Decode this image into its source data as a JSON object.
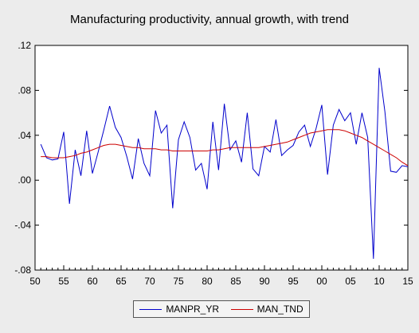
{
  "chart_data": {
    "type": "line",
    "title": "Manufacturing productivity, annual growth, with trend",
    "xlabel": "",
    "ylabel": "",
    "x": [
      1951,
      1952,
      1953,
      1954,
      1955,
      1956,
      1957,
      1958,
      1959,
      1960,
      1961,
      1962,
      1963,
      1964,
      1965,
      1966,
      1967,
      1968,
      1969,
      1970,
      1971,
      1972,
      1973,
      1974,
      1975,
      1976,
      1977,
      1978,
      1979,
      1980,
      1981,
      1982,
      1983,
      1984,
      1985,
      1986,
      1987,
      1988,
      1989,
      1990,
      1991,
      1992,
      1993,
      1994,
      1995,
      1996,
      1997,
      1998,
      1999,
      2000,
      2001,
      2002,
      2003,
      2004,
      2005,
      2006,
      2007,
      2008,
      2009,
      2010,
      2011,
      2012,
      2013,
      2014,
      2015
    ],
    "xlim": [
      1950,
      2015
    ],
    "ylim": [
      -0.08,
      0.12
    ],
    "x_ticks": [
      {
        "value": 1950,
        "label": "50"
      },
      {
        "value": 1955,
        "label": "55"
      },
      {
        "value": 1960,
        "label": "60"
      },
      {
        "value": 1965,
        "label": "65"
      },
      {
        "value": 1970,
        "label": "70"
      },
      {
        "value": 1975,
        "label": "75"
      },
      {
        "value": 1980,
        "label": "80"
      },
      {
        "value": 1985,
        "label": "85"
      },
      {
        "value": 1990,
        "label": "90"
      },
      {
        "value": 1995,
        "label": "95"
      },
      {
        "value": 2000,
        "label": "00"
      },
      {
        "value": 2005,
        "label": "05"
      },
      {
        "value": 2010,
        "label": "10"
      },
      {
        "value": 2015,
        "label": "15"
      }
    ],
    "y_ticks": [
      {
        "value": 0.12,
        "label": ".12"
      },
      {
        "value": 0.08,
        "label": ".08"
      },
      {
        "value": 0.04,
        "label": ".04"
      },
      {
        "value": 0.0,
        "label": ".00"
      },
      {
        "value": -0.04,
        "label": "-.04"
      },
      {
        "value": -0.08,
        "label": "-.08"
      }
    ],
    "grid": false,
    "legend_position": "bottom-center",
    "series": [
      {
        "name": "MANPR_YR",
        "color": "#0000cc",
        "values": [
          0.032,
          0.02,
          0.018,
          0.019,
          0.043,
          -0.021,
          0.027,
          0.004,
          0.044,
          0.006,
          0.025,
          0.045,
          0.066,
          0.047,
          0.038,
          0.021,
          0.001,
          0.037,
          0.015,
          0.004,
          0.062,
          0.042,
          0.049,
          -0.025,
          0.036,
          0.052,
          0.038,
          0.009,
          0.015,
          -0.008,
          0.052,
          0.009,
          0.068,
          0.027,
          0.035,
          0.016,
          0.06,
          0.01,
          0.004,
          0.03,
          0.025,
          0.054,
          0.022,
          0.027,
          0.031,
          0.043,
          0.049,
          0.03,
          0.046,
          0.067,
          0.005,
          0.049,
          0.063,
          0.053,
          0.06,
          0.032,
          0.06,
          0.038,
          -0.07,
          0.1,
          0.061,
          0.008,
          0.007,
          0.013,
          0.012
        ]
      },
      {
        "name": "MAN_TND",
        "color": "#cc0000",
        "values": [
          0.021,
          0.021,
          0.02,
          0.02,
          0.02,
          0.021,
          0.022,
          0.024,
          0.025,
          0.027,
          0.029,
          0.031,
          0.032,
          0.032,
          0.031,
          0.03,
          0.029,
          0.029,
          0.028,
          0.028,
          0.028,
          0.027,
          0.027,
          0.026,
          0.026,
          0.026,
          0.026,
          0.026,
          0.026,
          0.026,
          0.027,
          0.027,
          0.028,
          0.029,
          0.029,
          0.029,
          0.029,
          0.029,
          0.029,
          0.03,
          0.031,
          0.032,
          0.033,
          0.034,
          0.036,
          0.038,
          0.04,
          0.042,
          0.043,
          0.044,
          0.045,
          0.045,
          0.045,
          0.044,
          0.042,
          0.04,
          0.038,
          0.035,
          0.032,
          0.029,
          0.026,
          0.023,
          0.02,
          0.016,
          0.013
        ]
      }
    ]
  }
}
